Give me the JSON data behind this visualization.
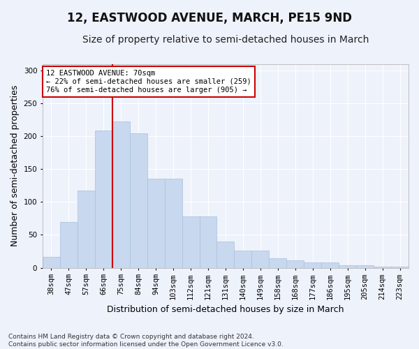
{
  "title": "12, EASTWOOD AVENUE, MARCH, PE15 9ND",
  "subtitle": "Size of property relative to semi-detached houses in March",
  "xlabel": "Distribution of semi-detached houses by size in March",
  "ylabel": "Number of semi-detached properties",
  "categories": [
    "38sqm",
    "47sqm",
    "57sqm",
    "66sqm",
    "75sqm",
    "84sqm",
    "94sqm",
    "103sqm",
    "112sqm",
    "121sqm",
    "131sqm",
    "140sqm",
    "149sqm",
    "158sqm",
    "168sqm",
    "177sqm",
    "186sqm",
    "195sqm",
    "205sqm",
    "214sqm",
    "223sqm"
  ],
  "values": [
    17,
    70,
    117,
    209,
    222,
    204,
    135,
    135,
    78,
    78,
    40,
    26,
    26,
    14,
    11,
    8,
    8,
    4,
    4,
    2,
    2
  ],
  "bar_color": "#c8d8ee",
  "bar_edge_color": "#a8c0de",
  "vline_color": "#cc0000",
  "vline_x_index": 3,
  "annotation_text": "12 EASTWOOD AVENUE: 70sqm\n← 22% of semi-detached houses are smaller (259)\n76% of semi-detached houses are larger (905) →",
  "annotation_box_facecolor": "#ffffff",
  "annotation_box_edgecolor": "#cc0000",
  "ylim": [
    0,
    310
  ],
  "yticks": [
    0,
    50,
    100,
    150,
    200,
    250,
    300
  ],
  "footnote": "Contains HM Land Registry data © Crown copyright and database right 2024.\nContains public sector information licensed under the Open Government Licence v3.0.",
  "bg_color": "#eef2fb",
  "plot_bg_color": "#eef2fb",
  "title_fontsize": 12,
  "subtitle_fontsize": 10,
  "ylabel_fontsize": 9,
  "xlabel_fontsize": 9,
  "tick_fontsize": 7.5,
  "annotation_fontsize": 7.5,
  "footnote_fontsize": 6.5,
  "grid_color": "#ffffff",
  "spine_color": "#aaaaaa"
}
